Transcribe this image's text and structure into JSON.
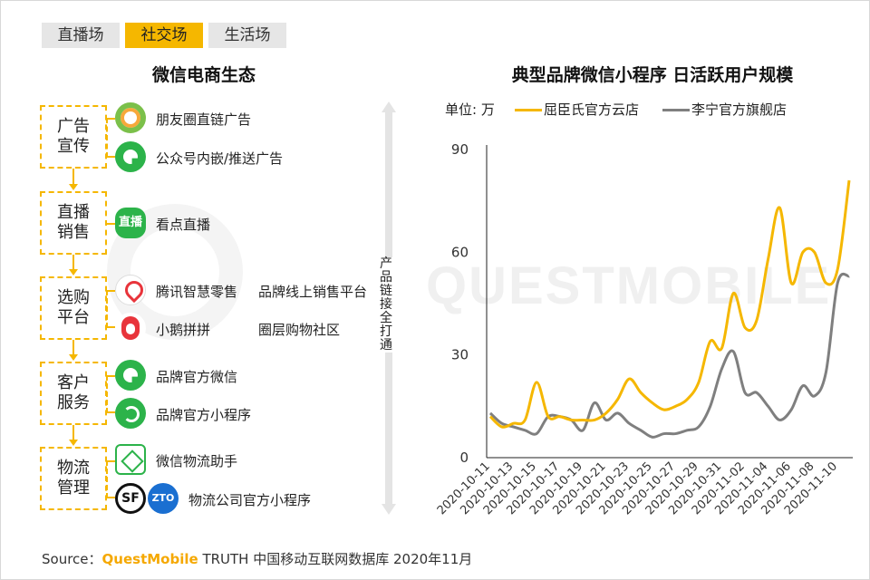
{
  "tabs": [
    "直播场",
    "社交场",
    "生活场"
  ],
  "active_tab": 1,
  "left_title": "微信电商生态",
  "right_title": "典型品牌微信小程序 日活跃用户规模",
  "categories": [
    {
      "label": "广告\n宣传"
    },
    {
      "label": "直播\n销售"
    },
    {
      "label": "选购\n平台"
    },
    {
      "label": "客户\n服务"
    },
    {
      "label": "物流\n管理"
    }
  ],
  "items": [
    {
      "icon": "moments-icon",
      "text": "朋友圈直链广告"
    },
    {
      "icon": "official-account-icon",
      "text": "公众号内嵌/推送广告"
    },
    {
      "icon": "live-icon",
      "icon_text": "直播",
      "text": "看点直播"
    },
    {
      "icon": "smart-retail-pin-icon",
      "text": "腾讯智慧零售",
      "desc": "品牌线上销售平台"
    },
    {
      "icon": "penguin-icon",
      "text": "小鹅拼拼",
      "desc": "圈层购物社区"
    },
    {
      "icon": "wechat-green-icon",
      "text": "品牌官方微信"
    },
    {
      "icon": "mini-program-icon",
      "text": "品牌官方小程序"
    },
    {
      "icon": "logistics-box-icon",
      "text": "微信物流助手"
    },
    {
      "icon": "sf-zto-icons",
      "sf_text": "SF",
      "zto_text": "ZTO",
      "text": "物流公司官方小程序"
    }
  ],
  "vertical_text": "产品链接全打通",
  "watermark": "QUESTMOBILE",
  "colors": {
    "accent": "#f5b700",
    "series1": "#f5b700",
    "series2": "#7f7f7f",
    "grey_tab": "#e6e6e6"
  },
  "chart_data": {
    "type": "line",
    "unit_label": "单位: 万",
    "ylim": [
      0,
      90
    ],
    "yticks": [
      0,
      30,
      60,
      90
    ],
    "x": [
      "2020-10-11",
      "2020-10-12",
      "2020-10-13",
      "2020-10-14",
      "2020-10-15",
      "2020-10-16",
      "2020-10-17",
      "2020-10-18",
      "2020-10-19",
      "2020-10-20",
      "2020-10-21",
      "2020-10-22",
      "2020-10-23",
      "2020-10-24",
      "2020-10-25",
      "2020-10-26",
      "2020-10-27",
      "2020-10-28",
      "2020-10-29",
      "2020-10-30",
      "2020-10-31",
      "2020-11-01",
      "2020-11-02",
      "2020-11-03",
      "2020-11-04",
      "2020-11-05",
      "2020-11-06",
      "2020-11-07",
      "2020-11-08",
      "2020-11-09",
      "2020-11-10",
      "2020-11-11"
    ],
    "xtick_labels": [
      "2020-10-11",
      "2020-10-13",
      "2020-10-15",
      "2020-10-17",
      "2020-10-19",
      "2020-10-21",
      "2020-10-23",
      "2020-10-25",
      "2020-10-27",
      "2020-10-29",
      "2020-10-31",
      "2020-11-02",
      "2020-11-04",
      "2020-11-06",
      "2020-11-08",
      "2020-11-10"
    ],
    "series": [
      {
        "name": "屈臣氏官方云店",
        "values": [
          12,
          9,
          10,
          11,
          22,
          12,
          12,
          11,
          11,
          11,
          13,
          17,
          23,
          19,
          16,
          14,
          15,
          17,
          22,
          34,
          32,
          48,
          38,
          40,
          58,
          73,
          51,
          60,
          60,
          51,
          55,
          81
        ]
      },
      {
        "name": "李宁官方旗舰店",
        "values": [
          13,
          10,
          9,
          8,
          7,
          12,
          12,
          11,
          8,
          16,
          11,
          13,
          10,
          8,
          6,
          7,
          7,
          8,
          9,
          15,
          26,
          31,
          19,
          19,
          15,
          11,
          14,
          21,
          18,
          25,
          51,
          53
        ]
      }
    ]
  },
  "source": {
    "prefix": "Source：",
    "brand": "QuestMobile",
    "text": " TRUTH 中国移动互联网数据库 2020年11月"
  }
}
